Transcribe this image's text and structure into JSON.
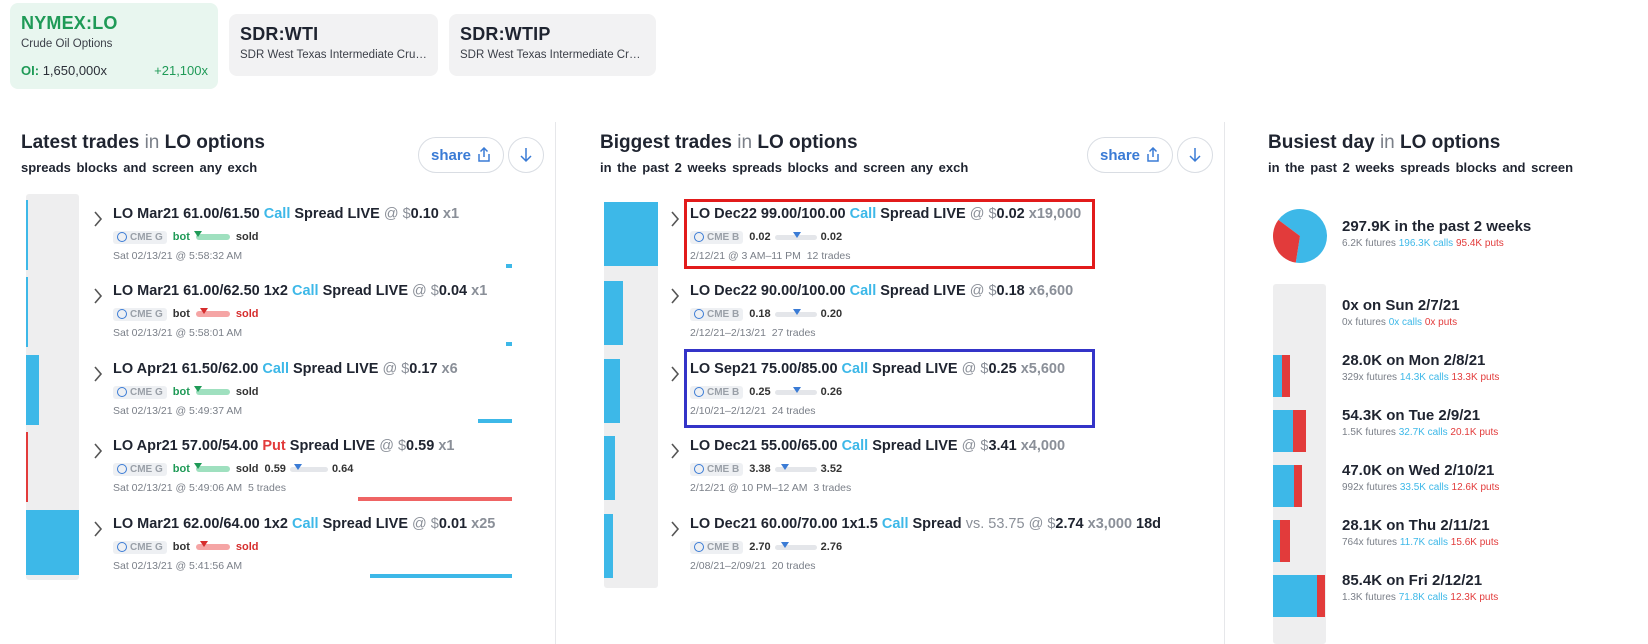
{
  "symbols": [
    {
      "sym": "NYMEX:LO",
      "desc": "Crude Oil Options",
      "oi_label": "OI:",
      "oi_value": "1,650,000x",
      "change": "+21,100x"
    },
    {
      "sym": "SDR:WTI",
      "desc": "SDR West Texas Intermediate Crud..."
    },
    {
      "sym": "SDR:WTIP",
      "desc": "SDR West Texas Intermediate Crud..."
    }
  ],
  "colors": {
    "call": "#3db8e8",
    "put": "#e23b3b",
    "green": "#1f9a57",
    "highlight_red": "#e21b1b",
    "highlight_blue": "#3434c8"
  },
  "latest": {
    "title": "Latest trades",
    "in": "in",
    "product": "LO options",
    "subtitle": "spreads blocks and screen any exch",
    "share_label": "share",
    "trades": [
      {
        "contract": "LO Mar21 61.00/61.50",
        "type": "Call",
        "rest": "Spread LIVE",
        "at": "@ $",
        "price": "0.10",
        "qty": "x1",
        "exch": "CME G",
        "bot": "bot",
        "sold": "sold",
        "side": "bot",
        "time": "Sat 02/13/21 @ 5:58:32 AM",
        "gutter_fill": 0.0,
        "bar_color": "call"
      },
      {
        "contract": "LO Mar21 61.00/62.50 1x2",
        "type": "Call",
        "rest": "Spread LIVE",
        "at": "@ $",
        "price": "0.04",
        "qty": "x1",
        "exch": "CME G",
        "bot": "bot",
        "sold": "sold",
        "side": "sold",
        "time": "Sat 02/13/21 @ 5:58:01 AM",
        "gutter_fill": 0.0,
        "bar_color": "call"
      },
      {
        "contract": "LO Apr21 61.50/62.00",
        "type": "Call",
        "rest": "Spread LIVE",
        "at": "@ $",
        "price": "0.17",
        "qty": "x6",
        "exch": "CME G",
        "bot": "bot",
        "sold": "sold",
        "side": "bot",
        "time": "Sat 02/13/21 @ 5:49:37 AM",
        "gutter_fill": 0.24,
        "bar_color": "call"
      },
      {
        "contract": "LO Apr21 57.00/54.00",
        "type": "Put",
        "rest": "Spread LIVE",
        "at": "@ $",
        "price": "0.59",
        "qty": "x1",
        "exch": "CME G",
        "bot": "bot",
        "sold": "sold",
        "side": "bot",
        "range_lo": "0.59",
        "range_hi": "0.64",
        "time": "Sat 02/13/21 @ 5:49:06 AM",
        "trades_count": "5 trades",
        "gutter_fill": 0.04,
        "bar_color": "put"
      },
      {
        "contract": "LO Mar21 62.00/64.00 1x2",
        "type": "Call",
        "rest": "Spread LIVE",
        "at": "@ $",
        "price": "0.01",
        "qty": "x25",
        "exch": "CME G",
        "bot": "bot",
        "sold": "sold",
        "side": "sold",
        "time": "Sat 02/13/21 @ 5:41:56 AM",
        "gutter_fill": 1.0,
        "bar_color": "call"
      }
    ]
  },
  "biggest": {
    "title": "Biggest trades",
    "in": "in",
    "product": "LO options",
    "subtitle": "in the past 2 weeks spreads blocks and screen any exch",
    "share_label": "share",
    "trades": [
      {
        "contract": "LO Dec22 99.00/100.00",
        "type": "Call",
        "rest": "Spread LIVE",
        "at": "@ $",
        "price": "0.02",
        "qty": "x19,000",
        "exch": "CME B",
        "range_lo": "0.02",
        "range_hi": "0.02",
        "time": "2/12/21 @ 3 AM–11 PM",
        "trades_count": "12 trades",
        "gutter_fill": 1.0
      },
      {
        "contract": "LO Dec22 90.00/100.00",
        "type": "Call",
        "rest": "Spread LIVE",
        "at": "@ $",
        "price": "0.18",
        "qty": "x6,600",
        "exch": "CME B",
        "range_lo": "0.18",
        "range_hi": "0.20",
        "time": "2/12/21–2/13/21",
        "trades_count": "27 trades",
        "gutter_fill": 0.35
      },
      {
        "contract": "LO Sep21 75.00/85.00",
        "type": "Call",
        "rest": "Spread LIVE",
        "at": "@ $",
        "price": "0.25",
        "qty": "x5,600",
        "exch": "CME B",
        "range_lo": "0.25",
        "range_hi": "0.26",
        "time": "2/10/21–2/12/21",
        "trades_count": "24 trades",
        "gutter_fill": 0.29
      },
      {
        "contract": "LO Dec21 55.00/65.00",
        "type": "Call",
        "rest": "Spread LIVE",
        "at": "@ $",
        "price": "3.41",
        "qty": "x4,000",
        "exch": "CME B",
        "range_lo": "3.38",
        "range_hi": "3.52",
        "time": "2/12/21 @ 10 PM–12 AM",
        "trades_count": "3 trades",
        "gutter_fill": 0.21
      },
      {
        "contract": "LO Dec21 60.00/70.00 1x1.5",
        "type": "Call",
        "rest": "Spread",
        "vs": "vs. 53.75",
        "at": "@ $",
        "price": "2.74",
        "qty": "x3,000",
        "extra": "18d",
        "exch": "CME B",
        "range_lo": "2.70",
        "range_hi": "2.76",
        "time": "2/08/21–2/09/21",
        "trades_count": "20 trades",
        "gutter_fill": 0.16
      }
    ]
  },
  "busiest": {
    "title": "Busiest day",
    "in": "in",
    "product": "LO options",
    "subtitle": "in the past 2 weeks spreads blocks and screen",
    "summary": {
      "main": "297.9K in the past 2 weeks",
      "futures": "6.2K futures",
      "calls": "196.3K calls",
      "puts": "95.4K puts",
      "calls_value": 196.3,
      "puts_value": 95.4
    },
    "days": [
      {
        "main": "0x on Sun 2/7/21",
        "futures": "0x futures",
        "calls": "0x calls",
        "puts": "0x puts",
        "calls_value": 0,
        "puts_value": 0
      },
      {
        "main": "28.0K on Mon 2/8/21",
        "futures": "329x futures",
        "calls": "14.3K calls",
        "puts": "13.3K puts",
        "calls_value": 14.3,
        "puts_value": 13.3
      },
      {
        "main": "54.3K on Tue 2/9/21",
        "futures": "1.5K futures",
        "calls": "32.7K calls",
        "puts": "20.1K puts",
        "calls_value": 32.7,
        "puts_value": 20.1
      },
      {
        "main": "47.0K on Wed 2/10/21",
        "futures": "992x futures",
        "calls": "33.5K calls",
        "puts": "12.6K puts",
        "calls_value": 33.5,
        "puts_value": 12.6
      },
      {
        "main": "28.1K on Thu 2/11/21",
        "futures": "764x futures",
        "calls": "11.7K calls",
        "puts": "15.6K puts",
        "calls_value": 11.7,
        "puts_value": 15.6
      },
      {
        "main": "85.4K on Fri 2/12/21",
        "futures": "1.3K futures",
        "calls": "71.8K calls",
        "puts": "12.3K puts",
        "calls_value": 71.8,
        "puts_value": 12.3
      }
    ]
  }
}
